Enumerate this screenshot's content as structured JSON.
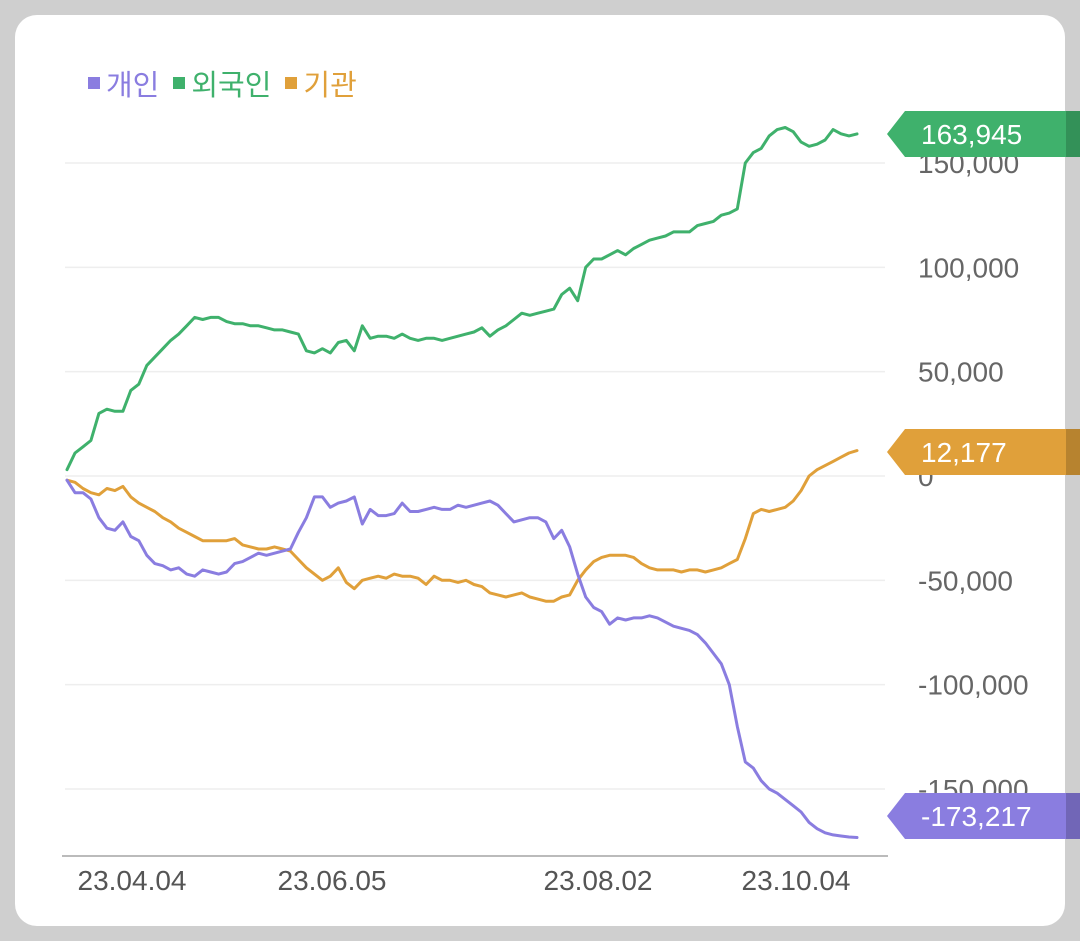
{
  "chart_data": {
    "type": "line",
    "legend": {
      "placement": "top-left",
      "items": [
        {
          "label": "개인",
          "color": "#8a7de0"
        },
        {
          "label": "외국인",
          "color": "#3fb16c"
        },
        {
          "label": "기관",
          "color": "#e0a03a"
        }
      ]
    },
    "x_ticks": [
      "23.04.04",
      "23.06.05",
      "23.08.02",
      "23.10.04"
    ],
    "y_ticks": [
      "150,000",
      "100,000",
      "50,000",
      "0",
      "-50,000",
      "-100,000",
      "-150,000"
    ],
    "y_tick_values": [
      150000,
      100000,
      50000,
      0,
      -50000,
      -100000,
      -150000
    ],
    "ylim": [
      -180000,
      170000
    ],
    "grid": true,
    "series": [
      {
        "name": "외국인",
        "color": "#3fb16c",
        "last_value_label": "163,945",
        "values": [
          3000,
          11000,
          14000,
          17000,
          30000,
          32000,
          31000,
          31000,
          41000,
          44000,
          53000,
          57000,
          61000,
          65000,
          68000,
          72000,
          76000,
          75000,
          76000,
          76000,
          74000,
          73000,
          73000,
          72000,
          72000,
          71000,
          70000,
          70000,
          69000,
          68000,
          60000,
          59000,
          61000,
          59000,
          64000,
          65000,
          60000,
          72000,
          66000,
          67000,
          67000,
          66000,
          68000,
          66000,
          65000,
          66000,
          66000,
          65000,
          66000,
          67000,
          68000,
          69000,
          71000,
          67000,
          70000,
          72000,
          75000,
          78000,
          77000,
          78000,
          79000,
          80000,
          87000,
          90000,
          84000,
          100000,
          104000,
          104000,
          106000,
          108000,
          106000,
          109000,
          111000,
          113000,
          114000,
          115000,
          117000,
          117000,
          117000,
          120000,
          121000,
          122000,
          125000,
          126000,
          128000,
          150000,
          155000,
          157000,
          163000,
          166000,
          167000,
          165000,
          160000,
          158000,
          159000,
          161000,
          166000,
          164000,
          163000,
          163945
        ]
      },
      {
        "name": "기관",
        "color": "#e0a03a",
        "last_value_label": "12,177",
        "values": [
          -2000,
          -3000,
          -6000,
          -8000,
          -9000,
          -6000,
          -7000,
          -5000,
          -10000,
          -13000,
          -15000,
          -17000,
          -20000,
          -22000,
          -25000,
          -27000,
          -29000,
          -31000,
          -31000,
          -31000,
          -31000,
          -30000,
          -33000,
          -34000,
          -35000,
          -35000,
          -34000,
          -35000,
          -36000,
          -40000,
          -44000,
          -47000,
          -50000,
          -48000,
          -44000,
          -51000,
          -54000,
          -50000,
          -49000,
          -48000,
          -49000,
          -47000,
          -48000,
          -48000,
          -49000,
          -52000,
          -48000,
          -50000,
          -50000,
          -51000,
          -50000,
          -52000,
          -53000,
          -56000,
          -57000,
          -58000,
          -57000,
          -56000,
          -58000,
          -59000,
          -60000,
          -60000,
          -58000,
          -57000,
          -50000,
          -45000,
          -41000,
          -39000,
          -38000,
          -38000,
          -38000,
          -39000,
          -42000,
          -44000,
          -45000,
          -45000,
          -45000,
          -46000,
          -45000,
          -45000,
          -46000,
          -45000,
          -44000,
          -42000,
          -40000,
          -30000,
          -18000,
          -16000,
          -17000,
          -16000,
          -15000,
          -12000,
          -7000,
          0,
          3000,
          5000,
          7000,
          9000,
          11000,
          12177
        ]
      },
      {
        "name": "개인",
        "color": "#8a7de0",
        "last_value_label": "-173,217",
        "values": [
          -2000,
          -8000,
          -8000,
          -11000,
          -20000,
          -25000,
          -26000,
          -22000,
          -29000,
          -31000,
          -38000,
          -42000,
          -43000,
          -45000,
          -44000,
          -47000,
          -48000,
          -45000,
          -46000,
          -47000,
          -46000,
          -42000,
          -41000,
          -39000,
          -37000,
          -38000,
          -37000,
          -36000,
          -35000,
          -27000,
          -20000,
          -10000,
          -10000,
          -15000,
          -13000,
          -12000,
          -10000,
          -23000,
          -16000,
          -19000,
          -19000,
          -18000,
          -13000,
          -17000,
          -17000,
          -16000,
          -15000,
          -16000,
          -16000,
          -14000,
          -15000,
          -14000,
          -13000,
          -12000,
          -14000,
          -18000,
          -22000,
          -21000,
          -20000,
          -20000,
          -22000,
          -30000,
          -26000,
          -34000,
          -47000,
          -58000,
          -63000,
          -65000,
          -71000,
          -68000,
          -69000,
          -68000,
          -68000,
          -67000,
          -68000,
          -70000,
          -72000,
          -73000,
          -74000,
          -76000,
          -80000,
          -85000,
          -90000,
          -100000,
          -120000,
          -137000,
          -140000,
          -146000,
          -150000,
          -152000,
          -155000,
          -158000,
          -161000,
          -166000,
          -169000,
          -171000,
          -172000,
          -172500,
          -173000,
          -173217
        ]
      }
    ]
  }
}
